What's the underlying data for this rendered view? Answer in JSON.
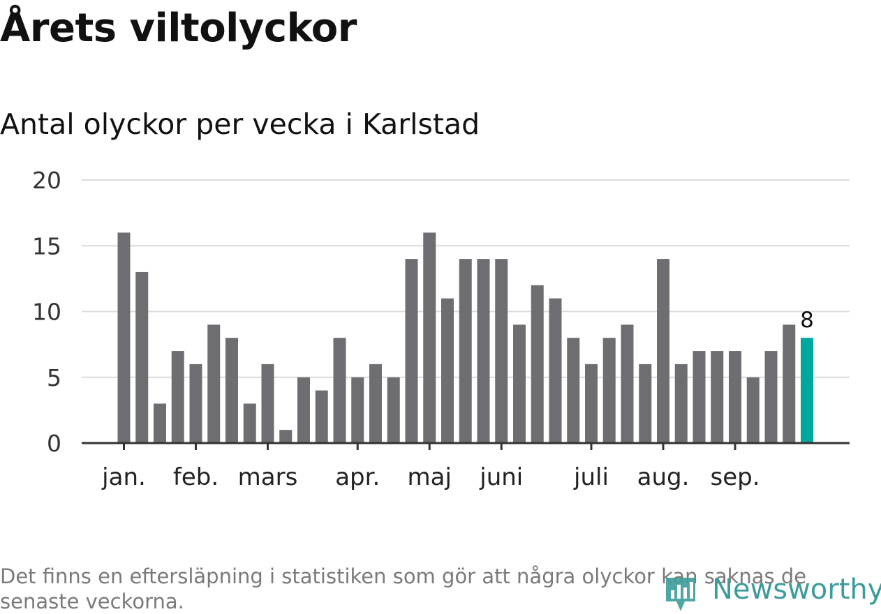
{
  "title": "Årets viltolyckor",
  "subtitle": "Antal olyckor per vecka i Karlstad",
  "footnote": "Det finns en eftersläpning i statistiken som gör att några olyckor kan saknas de senaste veckorna.",
  "logo": {
    "text": "Newsworthy",
    "color": "#3d9c99",
    "icon": "bar-chart-pin-icon"
  },
  "chart_data": {
    "type": "bar",
    "values": [
      16,
      13,
      3,
      7,
      6,
      9,
      8,
      3,
      6,
      1,
      5,
      4,
      8,
      5,
      6,
      5,
      14,
      16,
      11,
      14,
      14,
      14,
      9,
      12,
      11,
      8,
      6,
      8,
      9,
      6,
      14,
      6,
      7,
      7,
      7,
      5,
      7,
      9,
      8
    ],
    "ylim": [
      0,
      20
    ],
    "yticks": [
      0,
      5,
      10,
      15,
      20
    ],
    "month_labels": [
      {
        "label": "jan.",
        "bar_index": 0
      },
      {
        "label": "feb.",
        "bar_index": 4
      },
      {
        "label": "mars",
        "bar_index": 8
      },
      {
        "label": "apr.",
        "bar_index": 13
      },
      {
        "label": "maj",
        "bar_index": 17
      },
      {
        "label": "juni",
        "bar_index": 21
      },
      {
        "label": "juli",
        "bar_index": 26
      },
      {
        "label": "aug.",
        "bar_index": 30
      },
      {
        "label": "sep.",
        "bar_index": 34
      }
    ],
    "highlight_index": 38,
    "highlight_label": "8",
    "bar_color": "#6e6d72",
    "highlight_color": "#00a79d",
    "grid": true
  }
}
